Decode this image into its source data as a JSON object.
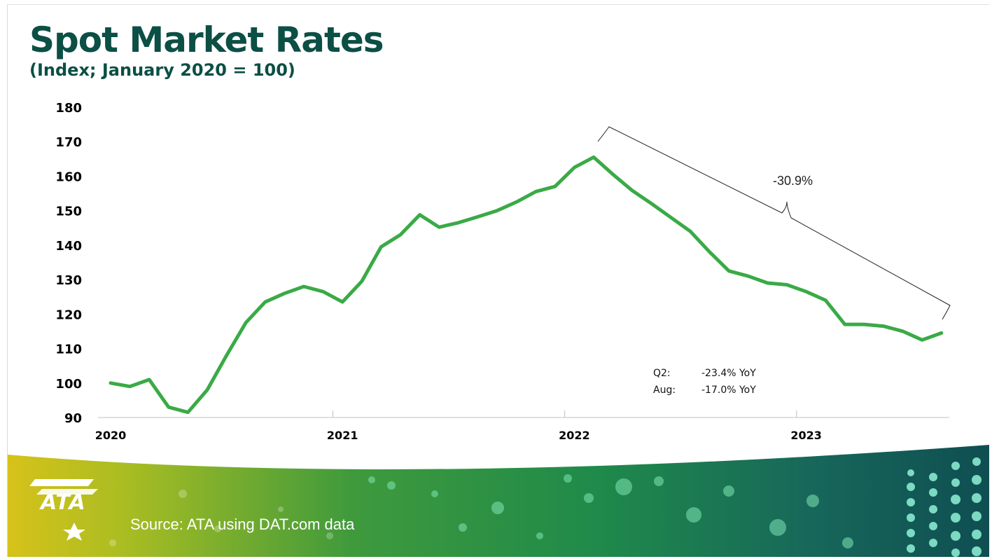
{
  "header": {
    "title": "Spot Market Rates",
    "subtitle": "(Index; January 2020 = 100)"
  },
  "footer": {
    "source": "Source: ATA using DAT.com data",
    "logo_text": "ATA"
  },
  "annotations": {
    "change_label": "-30.9%",
    "q2_label": "Q2:",
    "q2_value": "-23.4% YoY",
    "aug_label": "Aug:",
    "aug_value": "-17.0% YoY"
  },
  "colors": {
    "line": "#3aaa46",
    "title": "#0b4f45"
  },
  "chart_data": {
    "type": "line",
    "title": "Spot Market Rates",
    "subtitle": "(Index; January 2020 = 100)",
    "xlabel": "",
    "ylabel": "",
    "ylim": [
      90,
      180
    ],
    "yticks": [
      90,
      100,
      110,
      120,
      130,
      140,
      150,
      160,
      170,
      180
    ],
    "xtick_labels": [
      "2020",
      "2021",
      "2022",
      "2023"
    ],
    "x_start": "2020-01",
    "x_end": "2023-08",
    "grid": false,
    "series": [
      {
        "name": "Spot Market Rates Index",
        "values": [
          100,
          99,
          101,
          93,
          91.5,
          98,
          108,
          117.5,
          123.5,
          126,
          128,
          126.5,
          123.5,
          129.5,
          139.5,
          143,
          148.8,
          145.2,
          146.5,
          148.2,
          150,
          152.5,
          155.5,
          157,
          162.5,
          165.5,
          160.5,
          155.8,
          152,
          148,
          144,
          138,
          132.5,
          131,
          129,
          128.5,
          126.5,
          124,
          117,
          117,
          116.5,
          115,
          112.5,
          114.5
        ]
      }
    ]
  }
}
